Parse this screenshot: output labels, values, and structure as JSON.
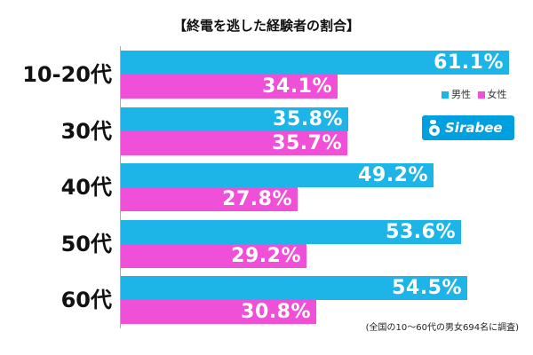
{
  "title": "【終電を逃した経験者の割合】",
  "legend": {
    "male": "男性",
    "female": "女性"
  },
  "colors": {
    "male": "#1db4e8",
    "female": "#f04fd8"
  },
  "logo": {
    "text": "Sirabee",
    "color": "#00a0e0"
  },
  "footnote": "(全国の10〜60代の男女694名に調査)",
  "chart_data": {
    "type": "bar",
    "orientation": "horizontal",
    "title": "【終電を逃した経験者の割合】",
    "categories": [
      "10-20代",
      "30代",
      "40代",
      "50代",
      "60代"
    ],
    "series": [
      {
        "name": "男性",
        "values": [
          61.1,
          35.8,
          49.2,
          53.6,
          54.5
        ]
      },
      {
        "name": "女性",
        "values": [
          34.1,
          35.7,
          27.8,
          29.2,
          30.8
        ]
      }
    ],
    "value_labels": [
      [
        "61.1%",
        "35.8%",
        "49.2%",
        "53.6%",
        "54.5%"
      ],
      [
        "34.1%",
        "35.7%",
        "27.8%",
        "29.2%",
        "30.8%"
      ]
    ],
    "unit": "%",
    "xlim": [
      0,
      70
    ],
    "grid": false,
    "legend_position": "right"
  }
}
